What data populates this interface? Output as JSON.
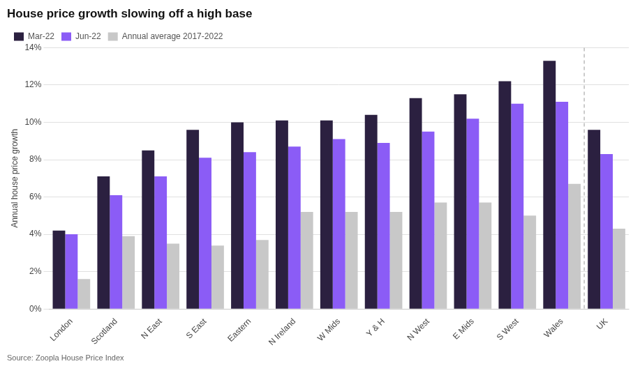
{
  "chart_data": {
    "type": "bar",
    "title": "House price growth slowing off a high base",
    "ylabel": "Annual house price growth",
    "source": "Source: Zoopla House Price Index",
    "categories": [
      "London",
      "Scotland",
      "N East",
      "S East",
      "Eastern",
      "N Ireland",
      "W Mids",
      "Y & H",
      "N West",
      "E Mids",
      "S West",
      "Wales",
      "UK"
    ],
    "series": [
      {
        "name": "Mar-22",
        "color": "#2b2040",
        "values": [
          4.2,
          7.1,
          8.5,
          9.6,
          10.0,
          10.1,
          10.1,
          10.4,
          11.3,
          11.5,
          12.2,
          13.3,
          9.6
        ]
      },
      {
        "name": "Jun-22",
        "color": "#8b5cf6",
        "values": [
          4.0,
          6.1,
          7.1,
          8.1,
          8.4,
          8.7,
          9.1,
          8.9,
          9.5,
          10.2,
          11.0,
          11.1,
          8.3
        ]
      },
      {
        "name": "Annual average 2017-2022",
        "color": "#c8c8c8",
        "values": [
          1.6,
          3.9,
          3.5,
          3.4,
          3.7,
          5.2,
          5.2,
          5.2,
          5.7,
          5.7,
          5.0,
          6.7,
          4.3
        ]
      }
    ],
    "ylim": [
      0,
      14
    ],
    "yticks": [
      {
        "value": 0,
        "label": "0%"
      },
      {
        "value": 2,
        "label": "2%"
      },
      {
        "value": 4,
        "label": "4%"
      },
      {
        "value": 6,
        "label": "6%"
      },
      {
        "value": 8,
        "label": "8%"
      },
      {
        "value": 10,
        "label": "10%"
      },
      {
        "value": 12,
        "label": "12%"
      },
      {
        "value": 14,
        "label": "14%"
      }
    ],
    "grid": true,
    "legend": "upper left"
  }
}
